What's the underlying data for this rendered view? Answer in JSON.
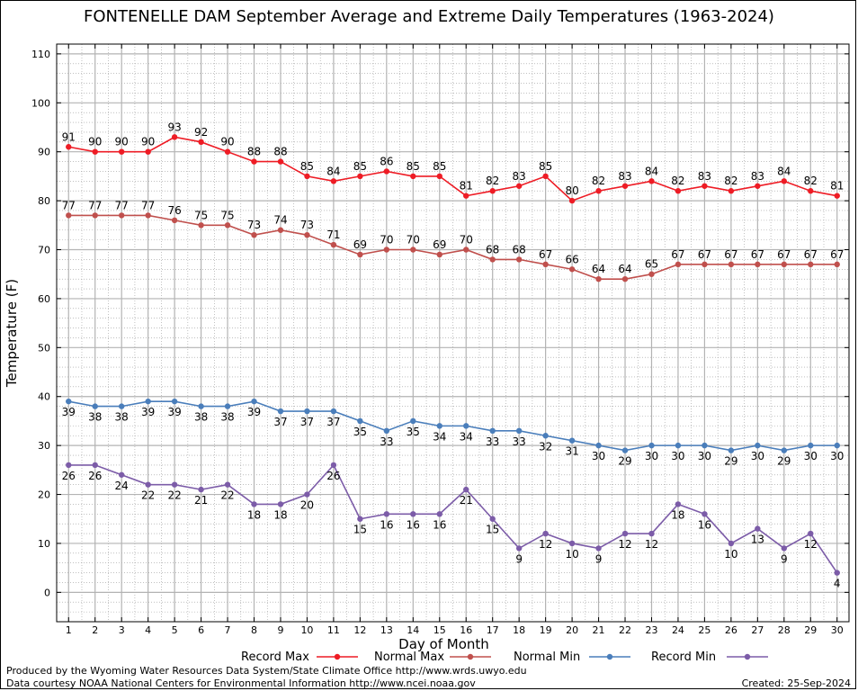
{
  "chart_data": {
    "type": "line",
    "title": "FONTENELLE DAM September Average and Extreme Daily Temperatures (1963-2024)",
    "xlabel": "Day of Month",
    "ylabel": "Temperature (F)",
    "x": [
      1,
      2,
      3,
      4,
      5,
      6,
      7,
      8,
      9,
      10,
      11,
      12,
      13,
      14,
      15,
      16,
      17,
      18,
      19,
      20,
      21,
      22,
      23,
      24,
      25,
      26,
      27,
      28,
      29,
      30
    ],
    "xlim": [
      0.55,
      30.45
    ],
    "ylim": [
      -6,
      112
    ],
    "y_ticks": [
      0,
      10,
      20,
      30,
      40,
      50,
      60,
      70,
      80,
      90,
      100,
      110
    ],
    "grid": true,
    "legend_position": "bottom",
    "series": [
      {
        "name": "Record Max",
        "color": "#ee1c25",
        "label_pos": "above",
        "values": [
          91,
          90,
          90,
          90,
          93,
          92,
          90,
          88,
          88,
          85,
          84,
          85,
          86,
          85,
          85,
          81,
          82,
          83,
          85,
          80,
          82,
          83,
          84,
          82,
          83,
          82,
          83,
          84,
          82,
          81
        ]
      },
      {
        "name": "Normal Max",
        "color": "#c0504d",
        "label_pos": "above",
        "values": [
          77,
          77,
          77,
          77,
          76,
          75,
          75,
          73,
          74,
          73,
          71,
          69,
          70,
          70,
          69,
          70,
          68,
          68,
          67,
          66,
          64,
          64,
          65,
          67,
          67,
          67,
          67,
          67,
          67,
          67
        ]
      },
      {
        "name": "Normal Min",
        "color": "#4a7ebb",
        "label_pos": "below",
        "values": [
          39,
          38,
          38,
          39,
          39,
          38,
          38,
          39,
          37,
          37,
          37,
          35,
          33,
          35,
          34,
          34,
          33,
          33,
          32,
          31,
          30,
          29,
          30,
          30,
          30,
          29,
          30,
          29,
          30,
          30
        ]
      },
      {
        "name": "Record Min",
        "color": "#7c5ca8",
        "label_pos": "below",
        "values": [
          26,
          26,
          24,
          22,
          22,
          21,
          22,
          18,
          18,
          20,
          26,
          15,
          16,
          16,
          16,
          21,
          15,
          9,
          12,
          10,
          9,
          12,
          12,
          18,
          16,
          10,
          13,
          9,
          12,
          4
        ]
      }
    ]
  },
  "footer": {
    "produced_by": "Produced by the Wyoming Water Resources Data System/State Climate Office http://www.wrds.uwyo.edu",
    "data_courtesy": "Data courtesy NOAA National Centers for Environmental Information http://www.ncei.noaa.gov",
    "created": "Created:  25-Sep-2024"
  }
}
